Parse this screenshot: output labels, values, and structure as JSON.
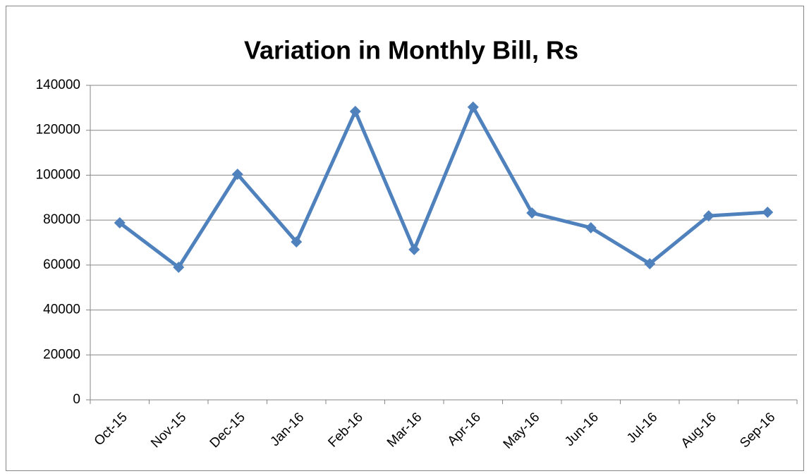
{
  "chart_data": {
    "type": "line",
    "title": "Variation in Monthly Bill, Rs",
    "categories": [
      "Oct-15",
      "Nov-15",
      "Dec-15",
      "Jan-16",
      "Feb-16",
      "Mar-16",
      "Apr-16",
      "May-16",
      "Jun-16",
      "Jul-16",
      "Aug-16",
      "Sep-16"
    ],
    "values": [
      78800,
      59000,
      100400,
      70300,
      128400,
      66900,
      130300,
      83200,
      76600,
      60600,
      81900,
      83500
    ],
    "color": "#4f81bd",
    "ylim": [
      0,
      140000
    ],
    "yticks": [
      0,
      20000,
      40000,
      60000,
      80000,
      100000,
      120000,
      140000
    ],
    "grid": true
  }
}
